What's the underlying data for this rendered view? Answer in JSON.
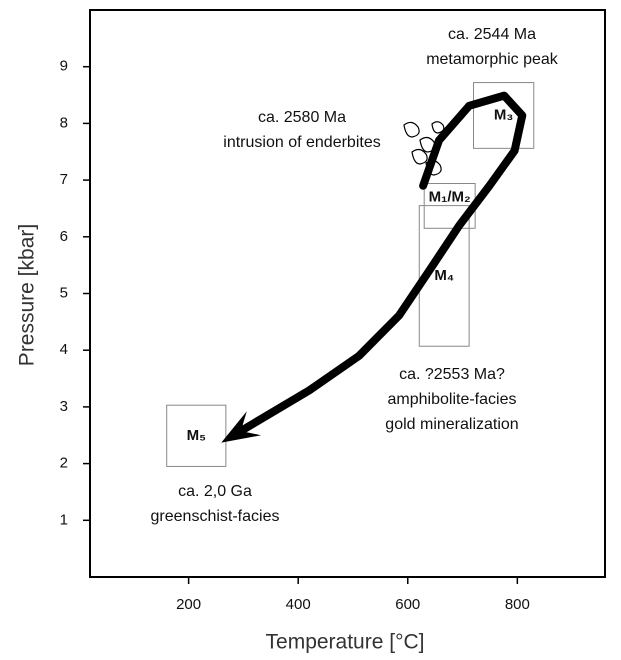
{
  "chart_data": {
    "type": "pt-path",
    "xlabel": "Temperature [°C]",
    "ylabel": "Pressure [kbar]",
    "xlim": [
      20,
      960
    ],
    "xticks": [
      200,
      400,
      600,
      800
    ],
    "ylim": [
      0,
      10
    ],
    "yticks": [
      1,
      2,
      3,
      4,
      5,
      6,
      7,
      8,
      9
    ],
    "boxes": [
      {
        "label": "M₃",
        "x": [
          720,
          830
        ],
        "y": [
          7.56,
          8.72
        ]
      },
      {
        "label": "M₁/M₂",
        "x": [
          630,
          723
        ],
        "y": [
          6.15,
          6.94
        ]
      },
      {
        "label": "M₄",
        "x": [
          621,
          712
        ],
        "y": [
          4.07,
          6.55
        ]
      },
      {
        "label": "M₅",
        "x": [
          160,
          268
        ],
        "y": [
          1.95,
          3.03
        ]
      }
    ],
    "path": {
      "color": "#000000",
      "x": [
        628,
        657,
        712,
        776,
        809,
        795,
        749,
        694,
        639,
        584,
        511,
        420,
        291
      ],
      "y": [
        6.9,
        7.7,
        8.31,
        8.49,
        8.14,
        7.52,
        6.9,
        6.2,
        5.4,
        4.61,
        3.9,
        3.29,
        2.55
      ]
    },
    "annotations": [
      {
        "lines": [
          "ca. 2544 Ma",
          "metamorphic peak"
        ]
      },
      {
        "lines": [
          "ca. 2580 Ma",
          "intrusion of enderbites"
        ]
      },
      {
        "lines": [
          "ca. ?2553 Ma?",
          "amphibolite-facies",
          "gold mineralization"
        ]
      },
      {
        "lines": [
          "ca. 2,0 Ga",
          "greenschist-facies"
        ]
      }
    ]
  }
}
